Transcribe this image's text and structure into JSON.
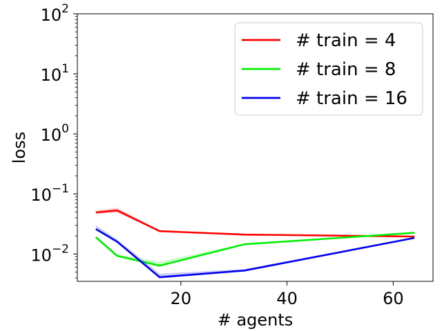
{
  "chart_data": {
    "type": "line",
    "xlabel": "# agents",
    "ylabel": "loss",
    "xlim": [
      0.5,
      67.5
    ],
    "ylim": [
      0.0035,
      100
    ],
    "yscale": "log",
    "x_ticks": [
      20,
      40,
      60
    ],
    "x_tick_labels": [
      "20",
      "40",
      "60"
    ],
    "y_ticks": [
      0.01,
      0.1,
      1,
      10,
      100
    ],
    "y_tick_labels": [
      {
        "base": "10",
        "exp": "−2"
      },
      {
        "base": "10",
        "exp": "−1"
      },
      {
        "base": "10",
        "exp": "0"
      },
      {
        "base": "10",
        "exp": "1"
      },
      {
        "base": "10",
        "exp": "2"
      }
    ],
    "grid": false,
    "legend_position": "top-right",
    "series": [
      {
        "name": "# train = 4",
        "color": "#ff0000",
        "x": [
          4,
          8,
          16,
          32,
          64
        ],
        "y": [
          0.049,
          0.053,
          0.024,
          0.021,
          0.0195
        ],
        "y_low": [
          0.047,
          0.049,
          0.0235,
          0.0205,
          0.019
        ],
        "y_high": [
          0.053,
          0.059,
          0.0245,
          0.0215,
          0.02
        ]
      },
      {
        "name": "# train = 8",
        "color": "#00ee00",
        "x": [
          4,
          8,
          16,
          32,
          64
        ],
        "y": [
          0.019,
          0.0093,
          0.0064,
          0.0145,
          0.0225
        ],
        "y_low": [
          0.018,
          0.0089,
          0.0061,
          0.0141,
          0.022
        ],
        "y_high": [
          0.02,
          0.0098,
          0.0075,
          0.015,
          0.0232
        ]
      },
      {
        "name": "# train = 16",
        "color": "#0000ee",
        "x": [
          4,
          8,
          16,
          32,
          64
        ],
        "y": [
          0.026,
          0.016,
          0.0041,
          0.0053,
          0.0185
        ],
        "y_low": [
          0.025,
          0.0155,
          0.0039,
          0.0051,
          0.018
        ],
        "y_high": [
          0.03,
          0.0175,
          0.0047,
          0.0056,
          0.019
        ]
      }
    ]
  }
}
